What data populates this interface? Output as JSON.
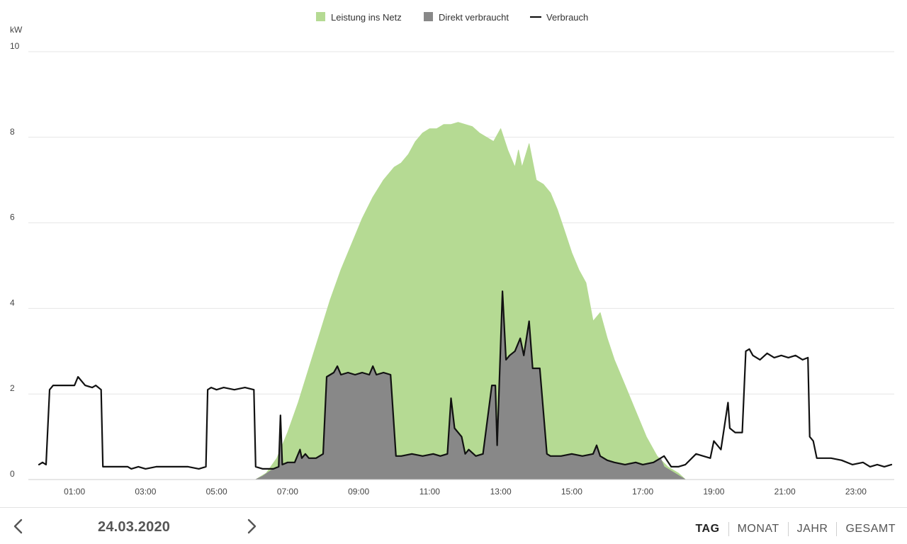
{
  "chart_data": {
    "type": "area",
    "ylabel": "kW",
    "ylim": [
      0,
      10
    ],
    "yticks": [
      "0",
      "2",
      "4",
      "6",
      "8",
      "10"
    ],
    "xlim": [
      0,
      24
    ],
    "xticks": [
      "01:00",
      "03:00",
      "05:00",
      "07:00",
      "09:00",
      "11:00",
      "13:00",
      "15:00",
      "17:00",
      "19:00",
      "21:00",
      "23:00"
    ],
    "legend_position": "top-center",
    "grid": true,
    "series": [
      {
        "name": "Leistung ins Netz",
        "kind": "area",
        "color": "#b5da93",
        "x": [
          6.1,
          6.4,
          6.7,
          7.0,
          7.3,
          7.6,
          7.9,
          8.2,
          8.5,
          8.8,
          9.1,
          9.4,
          9.7,
          10.0,
          10.2,
          10.4,
          10.6,
          10.8,
          11.0,
          11.2,
          11.4,
          11.6,
          11.8,
          12.0,
          12.2,
          12.4,
          12.6,
          12.8,
          13.0,
          13.2,
          13.4,
          13.5,
          13.6,
          13.8,
          14.0,
          14.2,
          14.4,
          14.6,
          14.8,
          15.0,
          15.2,
          15.4,
          15.6,
          15.8,
          16.0,
          16.2,
          16.5,
          16.8,
          17.1,
          17.4,
          17.7,
          18.0,
          18.2
        ],
        "values": [
          0.0,
          0.15,
          0.5,
          1.1,
          1.8,
          2.6,
          3.4,
          4.2,
          4.9,
          5.5,
          6.1,
          6.6,
          7.0,
          7.3,
          7.4,
          7.6,
          7.9,
          8.1,
          8.2,
          8.2,
          8.3,
          8.3,
          8.35,
          8.3,
          8.25,
          8.1,
          8.0,
          7.9,
          8.2,
          7.7,
          7.3,
          7.7,
          7.3,
          7.85,
          7.0,
          6.9,
          6.7,
          6.3,
          5.8,
          5.3,
          4.9,
          4.6,
          3.7,
          3.9,
          3.3,
          2.8,
          2.2,
          1.6,
          1.0,
          0.55,
          0.3,
          0.15,
          0.0
        ]
      },
      {
        "name": "Direkt verbraucht",
        "kind": "area",
        "color": "#888888",
        "x": [
          6.1,
          6.3,
          6.6,
          6.75,
          6.8,
          6.85,
          7.0,
          7.2,
          7.35,
          7.4,
          7.5,
          7.6,
          7.8,
          8.0,
          8.1,
          8.3,
          8.4,
          8.5,
          8.7,
          8.9,
          9.1,
          9.3,
          9.4,
          9.5,
          9.7,
          9.9,
          10.05,
          10.2,
          10.5,
          10.8,
          11.1,
          11.3,
          11.5,
          11.6,
          11.7,
          11.9,
          12.0,
          12.1,
          12.3,
          12.5,
          12.75,
          12.85,
          12.9,
          13.05,
          13.15,
          13.25,
          13.4,
          13.55,
          13.65,
          13.8,
          13.9,
          14.0,
          14.1,
          14.3,
          14.4,
          14.7,
          15.0,
          15.3,
          15.6,
          15.7,
          15.8,
          16.0,
          16.2,
          16.5,
          16.8,
          17.0,
          17.3,
          17.5,
          17.6,
          17.8,
          18.0,
          18.2
        ],
        "values": [
          0.0,
          0.08,
          0.25,
          0.3,
          1.5,
          0.35,
          0.4,
          0.4,
          0.7,
          0.5,
          0.6,
          0.5,
          0.5,
          0.6,
          2.4,
          2.5,
          2.65,
          2.45,
          2.5,
          2.45,
          2.5,
          2.45,
          2.65,
          2.45,
          2.5,
          2.45,
          0.55,
          0.55,
          0.6,
          0.55,
          0.6,
          0.55,
          0.6,
          1.9,
          1.2,
          1.0,
          0.6,
          0.7,
          0.55,
          0.6,
          2.2,
          2.2,
          0.8,
          4.4,
          2.8,
          2.9,
          3.0,
          3.3,
          2.9,
          3.7,
          2.6,
          2.6,
          2.6,
          0.6,
          0.55,
          0.55,
          0.6,
          0.55,
          0.6,
          0.8,
          0.55,
          0.45,
          0.4,
          0.35,
          0.4,
          0.35,
          0.4,
          0.5,
          0.3,
          0.2,
          0.1,
          0.0
        ]
      },
      {
        "name": "Verbrauch",
        "kind": "line",
        "color": "#111111",
        "x": [
          0.0,
          0.1,
          0.2,
          0.3,
          0.4,
          0.5,
          0.7,
          0.9,
          1.0,
          1.1,
          1.3,
          1.5,
          1.6,
          1.75,
          1.8,
          1.9,
          2.1,
          2.3,
          2.5,
          2.6,
          2.8,
          3.0,
          3.3,
          3.6,
          3.9,
          4.2,
          4.5,
          4.7,
          4.75,
          4.85,
          5.0,
          5.2,
          5.5,
          5.8,
          6.05,
          6.1,
          6.3,
          6.6,
          6.75,
          6.8,
          6.85,
          7.0,
          7.2,
          7.35,
          7.4,
          7.5,
          7.6,
          7.8,
          8.0,
          8.1,
          8.3,
          8.4,
          8.5,
          8.7,
          8.9,
          9.1,
          9.3,
          9.4,
          9.5,
          9.7,
          9.9,
          10.05,
          10.2,
          10.5,
          10.8,
          11.1,
          11.3,
          11.5,
          11.6,
          11.7,
          11.9,
          12.0,
          12.1,
          12.3,
          12.5,
          12.75,
          12.85,
          12.9,
          13.05,
          13.15,
          13.25,
          13.4,
          13.55,
          13.65,
          13.8,
          13.9,
          14.0,
          14.1,
          14.3,
          14.4,
          14.7,
          15.0,
          15.3,
          15.6,
          15.7,
          15.8,
          16.0,
          16.2,
          16.5,
          16.8,
          17.0,
          17.3,
          17.5,
          17.6,
          17.8,
          18.0,
          18.2,
          18.5,
          18.7,
          18.9,
          19.0,
          19.2,
          19.4,
          19.45,
          19.6,
          19.8,
          19.9,
          20.0,
          20.1,
          20.3,
          20.5,
          20.7,
          20.9,
          21.1,
          21.3,
          21.5,
          21.65,
          21.7,
          21.8,
          21.9,
          22.0,
          22.3,
          22.6,
          22.9,
          23.2,
          23.4,
          23.6,
          23.8,
          24.0
        ],
        "values": [
          0.35,
          0.4,
          0.35,
          2.1,
          2.2,
          2.2,
          2.2,
          2.2,
          2.2,
          2.4,
          2.2,
          2.15,
          2.2,
          2.1,
          0.3,
          0.3,
          0.3,
          0.3,
          0.3,
          0.25,
          0.3,
          0.25,
          0.3,
          0.3,
          0.3,
          0.3,
          0.25,
          0.3,
          2.1,
          2.15,
          2.1,
          2.15,
          2.1,
          2.15,
          2.1,
          0.3,
          0.25,
          0.25,
          0.3,
          1.5,
          0.35,
          0.4,
          0.4,
          0.7,
          0.5,
          0.6,
          0.5,
          0.5,
          0.6,
          2.4,
          2.5,
          2.65,
          2.45,
          2.5,
          2.45,
          2.5,
          2.45,
          2.65,
          2.45,
          2.5,
          2.45,
          0.55,
          0.55,
          0.6,
          0.55,
          0.6,
          0.55,
          0.6,
          1.9,
          1.2,
          1.0,
          0.6,
          0.7,
          0.55,
          0.6,
          2.2,
          2.2,
          0.8,
          4.4,
          2.8,
          2.9,
          3.0,
          3.3,
          2.9,
          3.7,
          2.6,
          2.6,
          2.6,
          0.6,
          0.55,
          0.55,
          0.6,
          0.55,
          0.6,
          0.8,
          0.55,
          0.45,
          0.4,
          0.35,
          0.4,
          0.35,
          0.4,
          0.5,
          0.55,
          0.3,
          0.3,
          0.35,
          0.6,
          0.55,
          0.5,
          0.9,
          0.7,
          1.8,
          1.2,
          1.1,
          1.1,
          3.0,
          3.05,
          2.9,
          2.8,
          2.95,
          2.85,
          2.9,
          2.85,
          2.9,
          2.8,
          2.85,
          1.0,
          0.9,
          0.5,
          0.5,
          0.5,
          0.45,
          0.35,
          0.4,
          0.3,
          0.35,
          0.3,
          0.35
        ]
      }
    ]
  },
  "footer": {
    "date": "24.03.2020",
    "periods": [
      {
        "label": "TAG",
        "active": true
      },
      {
        "label": "MONAT",
        "active": false
      },
      {
        "label": "JAHR",
        "active": false
      },
      {
        "label": "GESAMT",
        "active": false
      }
    ]
  }
}
